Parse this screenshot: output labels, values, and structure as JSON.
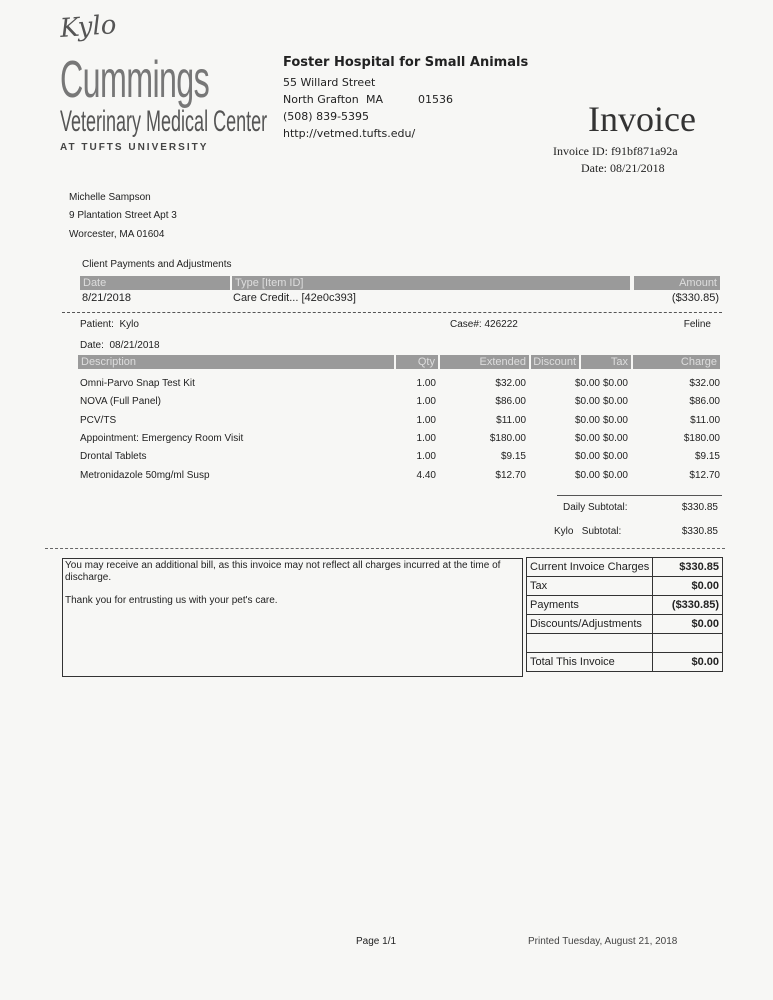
{
  "handwritten_note": "Kylo",
  "logo": {
    "line1": "Cummings",
    "line2": "Veterinary Medical Center",
    "line3": "AT TUFTS UNIVERSITY"
  },
  "hospital": {
    "name": "Foster Hospital for Small Animals",
    "street": "55 Willard Street",
    "city": "North Grafton",
    "state": "MA",
    "zip": "01536",
    "phone": "(508) 839-5395",
    "url": "http://vetmed.tufts.edu/"
  },
  "invoice": {
    "title": "Invoice",
    "id_label": "Invoice ID:",
    "id": "f91bf871a92a",
    "date_label": "Date:",
    "date": "08/21/2018"
  },
  "client": {
    "name": "Michelle Sampson",
    "address1": "9 Plantation Street Apt 3",
    "address2": "Worcester, MA 01604"
  },
  "payments": {
    "title": "Client Payments and Adjustments",
    "headers": {
      "date": "Date",
      "type": "Type [Item ID]",
      "amount": "Amount"
    },
    "rows": [
      {
        "date": "8/21/2018",
        "type": "Care Credit... [42e0c393]",
        "amount": "($330.85)"
      }
    ]
  },
  "patient": {
    "label": "Patient:",
    "name": "Kylo",
    "case_label": "Case#:",
    "case": "426222",
    "species": "Feline",
    "date_label": "Date:",
    "date": "08/21/2018"
  },
  "items": {
    "headers": {
      "description": "Description",
      "qty": "Qty",
      "extended": "Extended",
      "discount": "Discount",
      "tax": "Tax",
      "charge": "Charge"
    },
    "rows": [
      {
        "description": "Omni-Parvo Snap Test Kit",
        "qty": "1.00",
        "extended": "$32.00",
        "discount": "$0.00",
        "tax": "$0.00",
        "charge": "$32.00"
      },
      {
        "description": "NOVA (Full Panel)",
        "qty": "1.00",
        "extended": "$86.00",
        "discount": "$0.00",
        "tax": "$0.00",
        "charge": "$86.00"
      },
      {
        "description": "PCV/TS",
        "qty": "1.00",
        "extended": "$11.00",
        "discount": "$0.00",
        "tax": "$0.00",
        "charge": "$11.00"
      },
      {
        "description": "Appointment: Emergency Room Visit",
        "qty": "1.00",
        "extended": "$180.00",
        "discount": "$0.00",
        "tax": "$0.00",
        "charge": "$180.00"
      },
      {
        "description": "Drontal Tablets",
        "qty": "1.00",
        "extended": "$9.15",
        "discount": "$0.00",
        "tax": "$0.00",
        "charge": "$9.15"
      },
      {
        "description": "Metronidazole 50mg/ml Susp",
        "qty": "4.40",
        "extended": "$12.70",
        "discount": "$0.00",
        "tax": "$0.00",
        "charge": "$12.70"
      }
    ],
    "daily_subtotal_label": "Daily Subtotal:",
    "daily_subtotal": "$330.85",
    "patient_subtotal_name": "Kylo",
    "patient_subtotal_label": "Subtotal:",
    "patient_subtotal": "$330.85"
  },
  "notes": {
    "line1": "You may receive an additional bill, as this invoice may not reflect all charges incurred at the time of discharge.",
    "line2": "Thank you for entrusting us with your pet's care."
  },
  "totals": [
    {
      "label": "Current Invoice Charges",
      "value": "$330.85"
    },
    {
      "label": "Tax",
      "value": "$0.00"
    },
    {
      "label": "Payments",
      "value": "($330.85)"
    },
    {
      "label": "Discounts/Adjustments",
      "value": "$0.00"
    },
    {
      "label": "",
      "value": ""
    },
    {
      "label": "Total This Invoice",
      "value": "$0.00"
    }
  ],
  "footer": {
    "page": "Page 1/1",
    "printed": "Printed Tuesday, August 21, 2018"
  }
}
